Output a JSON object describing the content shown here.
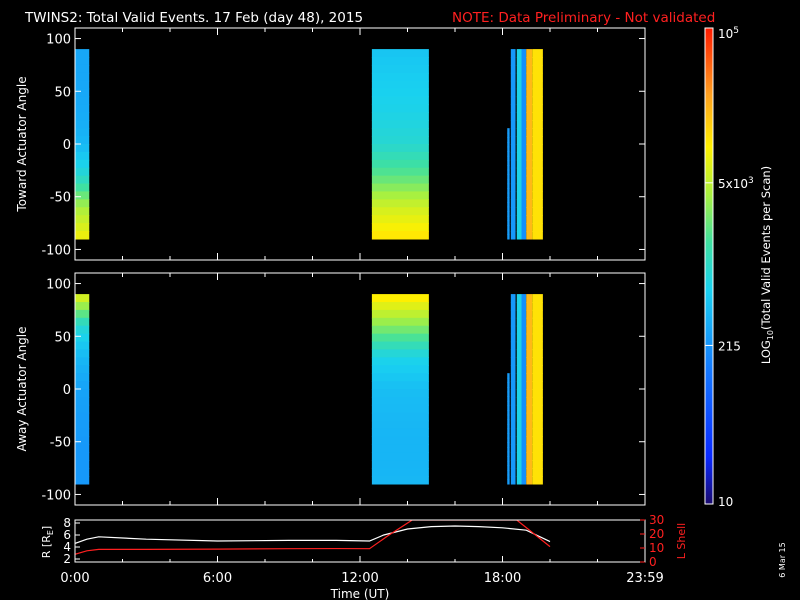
{
  "header": {
    "title": "TWINS2: Total Valid Events. 17 Feb (day  48), 2015",
    "note": "NOTE: Data Preliminary - Not validated"
  },
  "side_date": "6 Mar 15",
  "colors": {
    "background": "#000000",
    "axes": "#ffffff",
    "note": "#ff2020",
    "l_shell": "#ff2020",
    "r_line": "#ffffff"
  },
  "colorbar": {
    "label_main": "LOG",
    "label_sub": "10",
    "label_rest": "(Total Valid Events per Scan)",
    "ticks": [
      {
        "label": "10",
        "value": 10
      },
      {
        "label": "215",
        "value": 215
      },
      {
        "label": "5x10",
        "sup": "3",
        "value": 5000
      },
      {
        "label": "10",
        "sup": "5",
        "value": 100000
      }
    ],
    "range": [
      10,
      100000
    ],
    "scale": "log"
  },
  "chart_data": [
    {
      "type": "heatmap",
      "ylabel": "Toward Actuator Angle",
      "ylim": [
        -110,
        110
      ],
      "yticks": [
        "100",
        "50",
        "0",
        "-50",
        "-100"
      ],
      "ytick_values": [
        100,
        50,
        0,
        -50,
        -100
      ],
      "xlim": [
        0,
        24
      ],
      "time_blocks": [
        {
          "start": 0.0,
          "end": 0.6,
          "angles": [
            90,
            60,
            30,
            0,
            -30,
            -60,
            -90
          ],
          "values": [
            300,
            300,
            320,
            400,
            900,
            4000,
            9000
          ]
        },
        {
          "start": 12.5,
          "end": 14.9,
          "angles": [
            90,
            60,
            30,
            0,
            -30,
            -60,
            -90
          ],
          "values": [
            500,
            600,
            700,
            900,
            2000,
            6000,
            12000
          ]
        },
        {
          "start": 18.2,
          "end": 18.3,
          "angles": [
            15,
            0,
            -30,
            -60,
            -90
          ],
          "values": [
            250,
            250,
            250,
            250,
            250
          ]
        },
        {
          "start": 18.35,
          "end": 18.55,
          "angles": [
            90,
            60,
            30,
            0,
            -30,
            -60,
            -90
          ],
          "values": [
            230,
            230,
            230,
            230,
            230,
            230,
            230
          ]
        },
        {
          "start": 18.6,
          "end": 18.8,
          "angles": [
            90,
            60,
            30,
            0,
            -30,
            -60,
            -90
          ],
          "values": [
            700,
            700,
            700,
            700,
            700,
            700,
            700
          ]
        },
        {
          "start": 18.8,
          "end": 19.0,
          "angles": [
            90,
            60,
            30,
            0,
            -30,
            -60,
            -90
          ],
          "values": [
            200,
            200,
            200,
            200,
            200,
            200,
            200
          ]
        },
        {
          "start": 19.0,
          "end": 19.25,
          "angles": [
            90,
            60,
            30,
            0,
            -30,
            -60,
            -90
          ],
          "values": [
            20000,
            20000,
            20000,
            20000,
            20000,
            20000,
            20000
          ]
        },
        {
          "start": 19.25,
          "end": 19.7,
          "angles": [
            90,
            60,
            30,
            0,
            -30,
            -60,
            -90
          ],
          "values": [
            12000,
            12000,
            12000,
            12000,
            12000,
            12000,
            12000
          ]
        }
      ]
    },
    {
      "type": "heatmap",
      "ylabel": "Away Actuator Angle",
      "ylim": [
        -110,
        110
      ],
      "yticks": [
        "100",
        "50",
        "0",
        "-50",
        "-100"
      ],
      "ytick_values": [
        100,
        50,
        0,
        -50,
        -100
      ],
      "xlim": [
        0,
        24
      ],
      "time_blocks": [
        {
          "start": 0.0,
          "end": 0.6,
          "angles": [
            90,
            60,
            30,
            0,
            -30,
            -60,
            -90
          ],
          "values": [
            8000,
            900,
            400,
            280,
            250,
            230,
            230
          ]
        },
        {
          "start": 12.5,
          "end": 14.9,
          "angles": [
            90,
            60,
            30,
            0,
            -30,
            -60,
            -90
          ],
          "values": [
            12000,
            3000,
            700,
            450,
            400,
            380,
            400
          ]
        },
        {
          "start": 18.2,
          "end": 18.3,
          "angles": [
            15,
            0,
            -30,
            -60,
            -90
          ],
          "values": [
            250,
            250,
            250,
            250,
            250
          ]
        },
        {
          "start": 18.35,
          "end": 18.55,
          "angles": [
            90,
            60,
            30,
            0,
            -30,
            -60,
            -90
          ],
          "values": [
            230,
            230,
            230,
            230,
            230,
            230,
            230
          ]
        },
        {
          "start": 18.6,
          "end": 18.8,
          "angles": [
            90,
            60,
            30,
            0,
            -30,
            -60,
            -90
          ],
          "values": [
            700,
            700,
            700,
            700,
            700,
            700,
            700
          ]
        },
        {
          "start": 18.8,
          "end": 19.0,
          "angles": [
            90,
            60,
            30,
            0,
            -30,
            -60,
            -90
          ],
          "values": [
            200,
            200,
            200,
            200,
            200,
            200,
            200
          ]
        },
        {
          "start": 19.0,
          "end": 19.25,
          "angles": [
            90,
            60,
            30,
            0,
            -30,
            -60,
            -90
          ],
          "values": [
            20000,
            20000,
            20000,
            20000,
            20000,
            20000,
            20000
          ]
        },
        {
          "start": 19.25,
          "end": 19.7,
          "angles": [
            90,
            60,
            30,
            0,
            -30,
            -60,
            -90
          ],
          "values": [
            12000,
            12000,
            12000,
            12000,
            12000,
            12000,
            12000
          ]
        }
      ]
    },
    {
      "type": "line",
      "xlabel": "Time (UT)",
      "xlim": [
        0,
        24
      ],
      "xticks": [
        "0:00",
        "6:00",
        "12:00",
        "18:00",
        "23:59"
      ],
      "xtick_values": [
        0,
        6,
        12,
        18,
        24
      ],
      "ylabel": "R [R",
      "ylabel_sub": "E",
      "ylabel_end": "]",
      "ylim": [
        1.5,
        8.5
      ],
      "yticks": [
        "8",
        "6",
        "4",
        "2"
      ],
      "ytick_values": [
        8,
        6,
        4,
        2
      ],
      "y2label": "L Shell",
      "y2lim": [
        0,
        30
      ],
      "y2ticks": [
        "30",
        "20",
        "10",
        "0"
      ],
      "y2tick_values": [
        30,
        20,
        10,
        0
      ],
      "series": [
        {
          "axis": "left",
          "x": [
            0,
            0.5,
            1.0,
            3.0,
            6.0,
            9.0,
            11.0,
            12.4,
            13.0,
            14.0,
            15.0,
            16.0,
            17.0,
            18.0,
            19.0,
            20.0
          ],
          "y": [
            4.6,
            5.3,
            5.7,
            5.3,
            5.0,
            5.1,
            5.1,
            5.0,
            6.0,
            7.0,
            7.4,
            7.5,
            7.4,
            7.2,
            6.8,
            4.9
          ]
        },
        {
          "axis": "right",
          "x": [
            0,
            0.5,
            1.0,
            3.0,
            6.0,
            9.0,
            11.0,
            12.4,
            13.2,
            14.2,
            18.6,
            20.0
          ],
          "y": [
            5.5,
            8.0,
            9.0,
            9.0,
            9.2,
            9.5,
            9.6,
            9.5,
            19.0,
            30.0,
            30.0,
            11.0
          ]
        }
      ]
    }
  ]
}
